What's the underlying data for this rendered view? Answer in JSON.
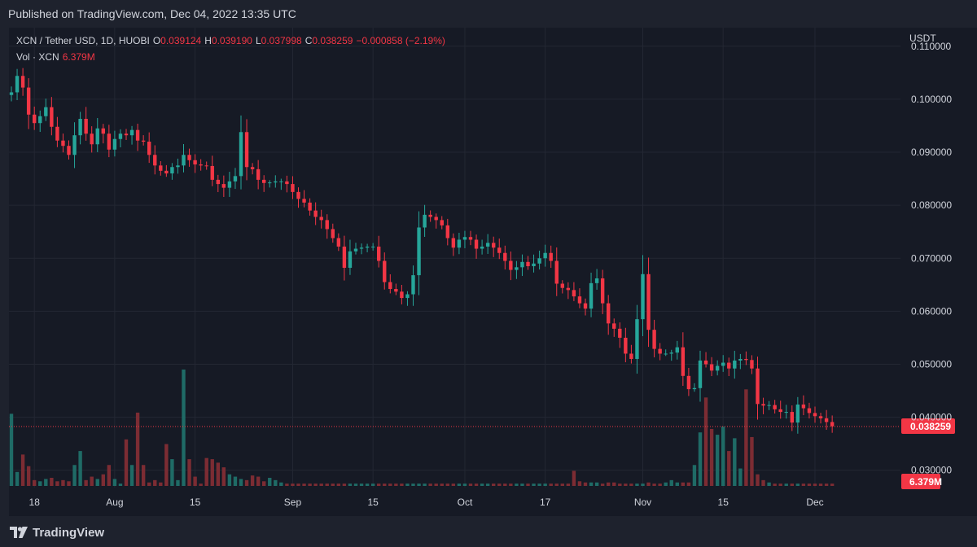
{
  "header": {
    "published": "Published on TradingView.com, Dec 04, 2022 13:35 UTC"
  },
  "legend": {
    "symbol": "XCN / Tether USD, 1D, HUOBI",
    "open_label": "O",
    "open": "0.039124",
    "high_label": "H",
    "high": "0.039190",
    "low_label": "L",
    "low": "0.037998",
    "close_label": "C",
    "close": "0.038259",
    "change": "−0.000858 (−2.19%)",
    "vol_label": "Vol · XCN",
    "vol": "6.379M"
  },
  "footer": {
    "brand": "TradingView"
  },
  "colors": {
    "up": "#26a69a",
    "down": "#f23645",
    "up_vol": "#1f6b66",
    "down_vol": "#7c2c33",
    "bg": "#161a25",
    "grid": "#232733"
  },
  "chart_data": {
    "type": "candlestick",
    "currency_label": "USDT",
    "y_ticks": [
      "0.110000",
      "0.100000",
      "0.090000",
      "0.080000",
      "0.070000",
      "0.060000",
      "0.050000",
      "0.040000",
      "0.030000"
    ],
    "ylim": [
      0.0275,
      0.1135
    ],
    "x_ticks": [
      {
        "day": 4,
        "label": "18"
      },
      {
        "day": 18,
        "label": "Aug"
      },
      {
        "day": 32,
        "label": "15"
      },
      {
        "day": 49,
        "label": "Sep"
      },
      {
        "day": 63,
        "label": "15"
      },
      {
        "day": 79,
        "label": "Oct"
      },
      {
        "day": 93,
        "label": "17"
      },
      {
        "day": 110,
        "label": "Nov"
      },
      {
        "day": 124,
        "label": "15"
      },
      {
        "day": 140,
        "label": "Dec"
      }
    ],
    "last_price": "0.038259",
    "last_volume": "6.379M",
    "closes": [
      0.1013,
      0.1044,
      0.1022,
      0.0971,
      0.0955,
      0.0968,
      0.0985,
      0.0948,
      0.0922,
      0.0912,
      0.0895,
      0.0932,
      0.0963,
      0.0935,
      0.0915,
      0.0945,
      0.0935,
      0.0905,
      0.0925,
      0.0935,
      0.0932,
      0.0942,
      0.0922,
      0.092,
      0.0895,
      0.0875,
      0.0865,
      0.086,
      0.0872,
      0.0875,
      0.0895,
      0.0885,
      0.0877,
      0.0875,
      0.0874,
      0.0848,
      0.084,
      0.0833,
      0.0845,
      0.0855,
      0.0938,
      0.0872,
      0.0868,
      0.0848,
      0.0842,
      0.0843,
      0.0845,
      0.0845,
      0.084,
      0.0825,
      0.0812,
      0.0805,
      0.079,
      0.0778,
      0.0772,
      0.0755,
      0.0738,
      0.0722,
      0.0682,
      0.0713,
      0.0718,
      0.072,
      0.0722,
      0.0722,
      0.0695,
      0.0655,
      0.0642,
      0.0637,
      0.0625,
      0.0632,
      0.0668,
      0.0758,
      0.0782,
      0.0778,
      0.0772,
      0.0762,
      0.0738,
      0.072,
      0.0735,
      0.074,
      0.0735,
      0.0718,
      0.0722,
      0.0729,
      0.072,
      0.071,
      0.0695,
      0.0678,
      0.0683,
      0.0693,
      0.0685,
      0.069,
      0.07,
      0.071,
      0.0695,
      0.0652,
      0.0644,
      0.064,
      0.0628,
      0.0615,
      0.0605,
      0.0653,
      0.0662,
      0.0615,
      0.0577,
      0.0567,
      0.055,
      0.052,
      0.051,
      0.0585,
      0.067,
      0.0565,
      0.0529,
      0.052,
      0.052,
      0.0522,
      0.0532,
      0.0478,
      0.0453,
      0.0455,
      0.0507,
      0.05,
      0.0488,
      0.0497,
      0.0503,
      0.0492,
      0.0507,
      0.051,
      0.0508,
      0.0492,
      0.0425,
      0.0422,
      0.0423,
      0.0415,
      0.041,
      0.041,
      0.039,
      0.0424,
      0.0417,
      0.0408,
      0.0402,
      0.0398,
      0.0391,
      0.0383
    ],
    "volumes": [
      0.62,
      0.12,
      0.27,
      0.17,
      0.05,
      0.04,
      0.06,
      0.07,
      0.04,
      0.05,
      0.04,
      0.18,
      0.3,
      0.05,
      0.08,
      0.06,
      0.1,
      0.18,
      0.06,
      0.02,
      0.4,
      0.18,
      0.63,
      0.18,
      0.03,
      0.05,
      0.03,
      0.36,
      0.23,
      0.05,
      1.0,
      0.23,
      0.08,
      0.02,
      0.24,
      0.23,
      0.2,
      0.16,
      0.1,
      0.08,
      0.06,
      0.05,
      0.09,
      0.08,
      0.04,
      0.07,
      0.05,
      0.03,
      0.02,
      0.02,
      0.02,
      0.02,
      0.02,
      0.02,
      0.02,
      0.02,
      0.02,
      0.02,
      0.02,
      0.02,
      0.02,
      0.02,
      0.02,
      0.02,
      0.02,
      0.02,
      0.02,
      0.02,
      0.02,
      0.02,
      0.02,
      0.02,
      0.02,
      0.02,
      0.02,
      0.02,
      0.02,
      0.02,
      0.02,
      0.02,
      0.02,
      0.02,
      0.02,
      0.02,
      0.02,
      0.02,
      0.02,
      0.02,
      0.02,
      0.02,
      0.02,
      0.02,
      0.02,
      0.02,
      0.02,
      0.02,
      0.02,
      0.02,
      0.13,
      0.04,
      0.03,
      0.03,
      0.03,
      0.02,
      0.03,
      0.03,
      0.02,
      0.02,
      0.02,
      0.02,
      0.02,
      0.03,
      0.02,
      0.02,
      0.03,
      0.05,
      0.03,
      0.03,
      0.03,
      0.18,
      0.46,
      0.76,
      0.49,
      0.44,
      0.51,
      0.3,
      0.41,
      0.15,
      0.83,
      0.42,
      0.1,
      0.05,
      0.03,
      0.02,
      0.02,
      0.02,
      0.02,
      0.02,
      0.02,
      0.02,
      0.02,
      0.02,
      0.02,
      0.02
    ]
  }
}
